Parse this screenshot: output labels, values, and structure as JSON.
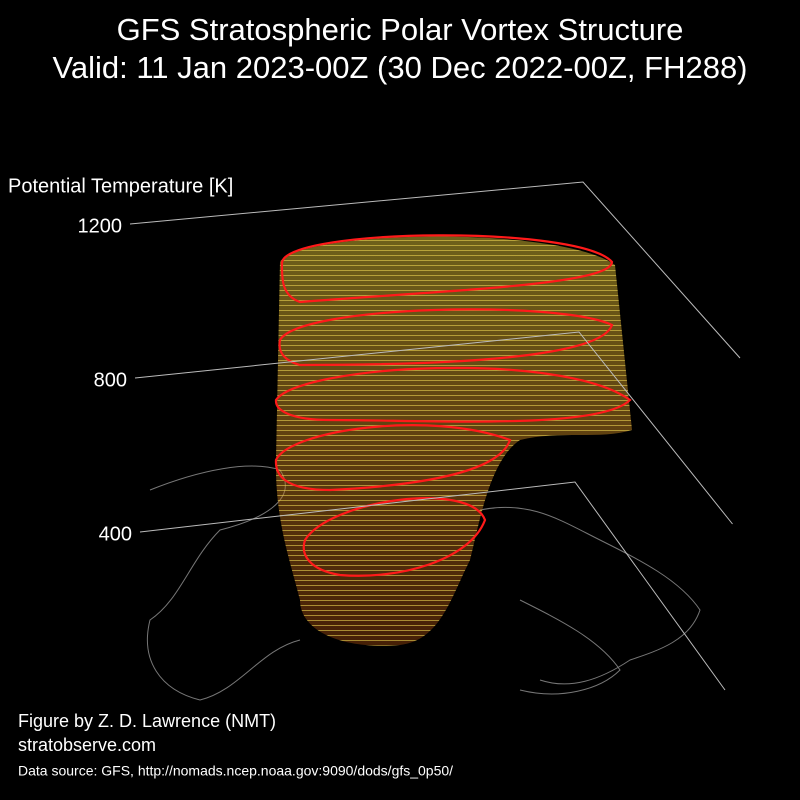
{
  "chart_data": {
    "type": "vortex3d",
    "title": "GFS Stratospheric Polar Vortex Structure",
    "subtitle": "Valid: 11 Jan 2023-00Z  (30 Dec 2022-00Z, FH288)",
    "z_label": "Potential Temperature [K]",
    "zlim": [
      400,
      1200
    ],
    "zticks": [
      400,
      800,
      1200
    ],
    "credit": "Figure by Z. D. Lawrence (NMT)",
    "website": "stratobserve.com",
    "source": "Data source: GFS, http://nomads.ncep.noaa.gov:9090/dods/gfs_0p50/"
  }
}
